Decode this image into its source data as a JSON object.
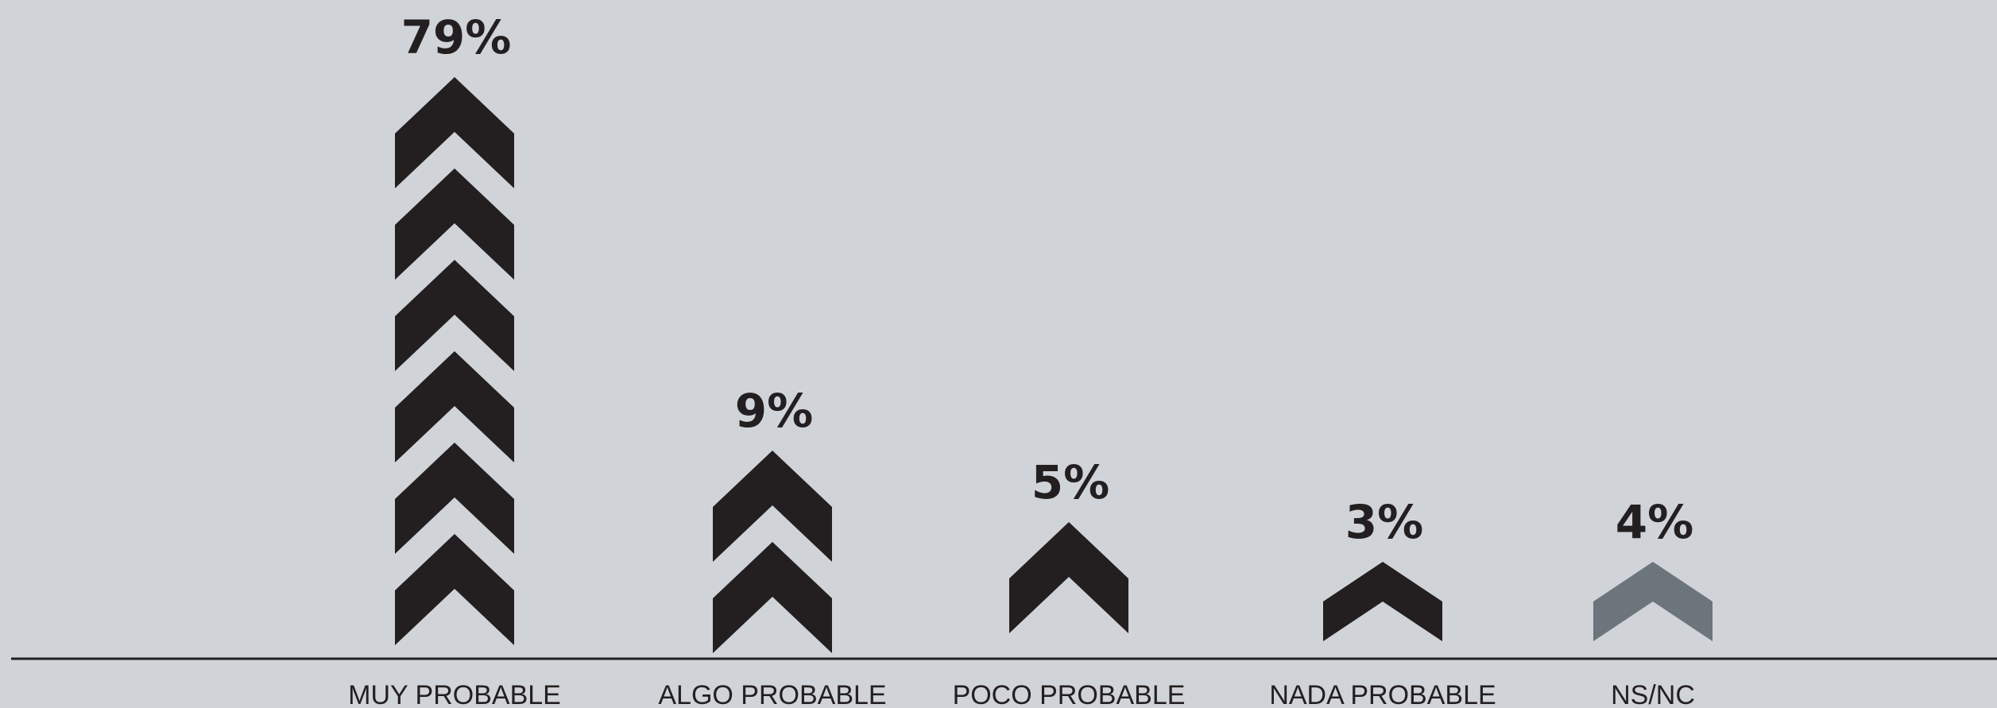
{
  "chart_data": {
    "type": "bar",
    "title": "",
    "xlabel": "",
    "ylabel": "",
    "ylim": [
      0,
      100
    ],
    "grid": false,
    "legend": "none",
    "categories": [
      "MUY PROBABLE",
      "ALGO PROBABLE",
      "POCO PROBABLE",
      "NADA PROBABLE",
      "NS/NC"
    ],
    "values": [
      79,
      9,
      5,
      3,
      4
    ],
    "value_labels": [
      "79%",
      "9%",
      "5%",
      "3%",
      "4%"
    ],
    "chevron_counts": [
      6,
      2,
      1,
      1,
      1
    ],
    "colors": {
      "background": "#d0d3d8",
      "chevron": "#231f20",
      "chevron_highlight": "#6c757b",
      "axis": "#231f20",
      "text": "#231f20"
    },
    "highlight_index": 4,
    "mark_shape": "chevron-up"
  }
}
